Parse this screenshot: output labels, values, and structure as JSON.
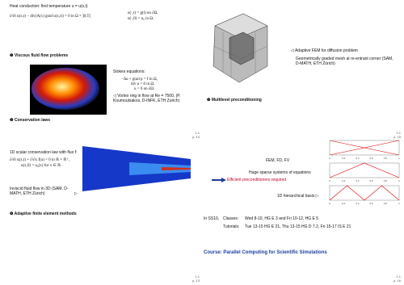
{
  "slides": [
    {
      "heading": "Heat conduction: find temperature u = u(x,t)",
      "equation_left": "∂/∂t u(x,t) − div(A(x) grad u(x,t)) = 0   in Ω × ]0,T[",
      "equation_right": [
        "u(·,t) = g(t)  on ∂Ω,",
        "u(·,0) = u₀  in Ω."
      ],
      "item1": "❶ Viscous fluid flow problems",
      "stokes_label": "Stokes equations:",
      "stokes_equations": [
        "−Δu + grad p = f  in Ω,",
        "div u = 0  in Ω,",
        "u = 0  on ∂Ω."
      ],
      "caption": "◁  Vortex ring in flow at Re = 7500, (P. Koumoutsakos, D-INFK, ETH Zurich)",
      "item2": "❷ Conservation laws",
      "footer": [
        "1.1",
        "p. 14"
      ]
    },
    {
      "caption_title": "◁  Adaptive FEM for diffusion problem",
      "caption": "Geometrically graded mesh at re-entrant corner (SAM, D-MATH, ETH Zürich)",
      "item3": "❸ Multilevel preconditioning",
      "footer": [
        "1.1",
        "p. 15"
      ]
    },
    {
      "heading": "1D scalar conservation law with flux f:",
      "equations": [
        "∂/∂t u(x,t) + ∂/∂x f(u) = 0   in ℝ × ℝ⁺,",
        "u(x,0) = u₀(x)   for x ∈ ℝ ."
      ],
      "caption": "Inviscid fluid flow in 3D (SAM, D-MATH, ETH Zürich)",
      "arrow": "▷",
      "item4": "❹ Adaptive finite element methods",
      "footer": [
        "1.1",
        "p. 13"
      ]
    },
    {
      "methods": "FEM, FD, FV",
      "systems": "Huge sparse systems of equations",
      "preconditioners": "Efficient preconditioners required",
      "basis": "1D hierarchical basis  ▷",
      "plot_ticks": [
        "0",
        "0.2",
        "0.4",
        "0.6",
        "0.8",
        "1"
      ],
      "term": "In SS10,",
      "classes_label": "Classes:",
      "classes": "Wed 8-10, HG E 3 and Fri 10-12, HG E 5",
      "tutorials_label": "Tutorials:",
      "tutorials": "Tue 13-15 HG E 21, Thu 13-15 HG D 7.2, Fri 15-17 IS E 21",
      "course": "Course: Parallel Computing for Scientific Simulations",
      "footer": [
        "1.1",
        "p. 16"
      ]
    }
  ]
}
